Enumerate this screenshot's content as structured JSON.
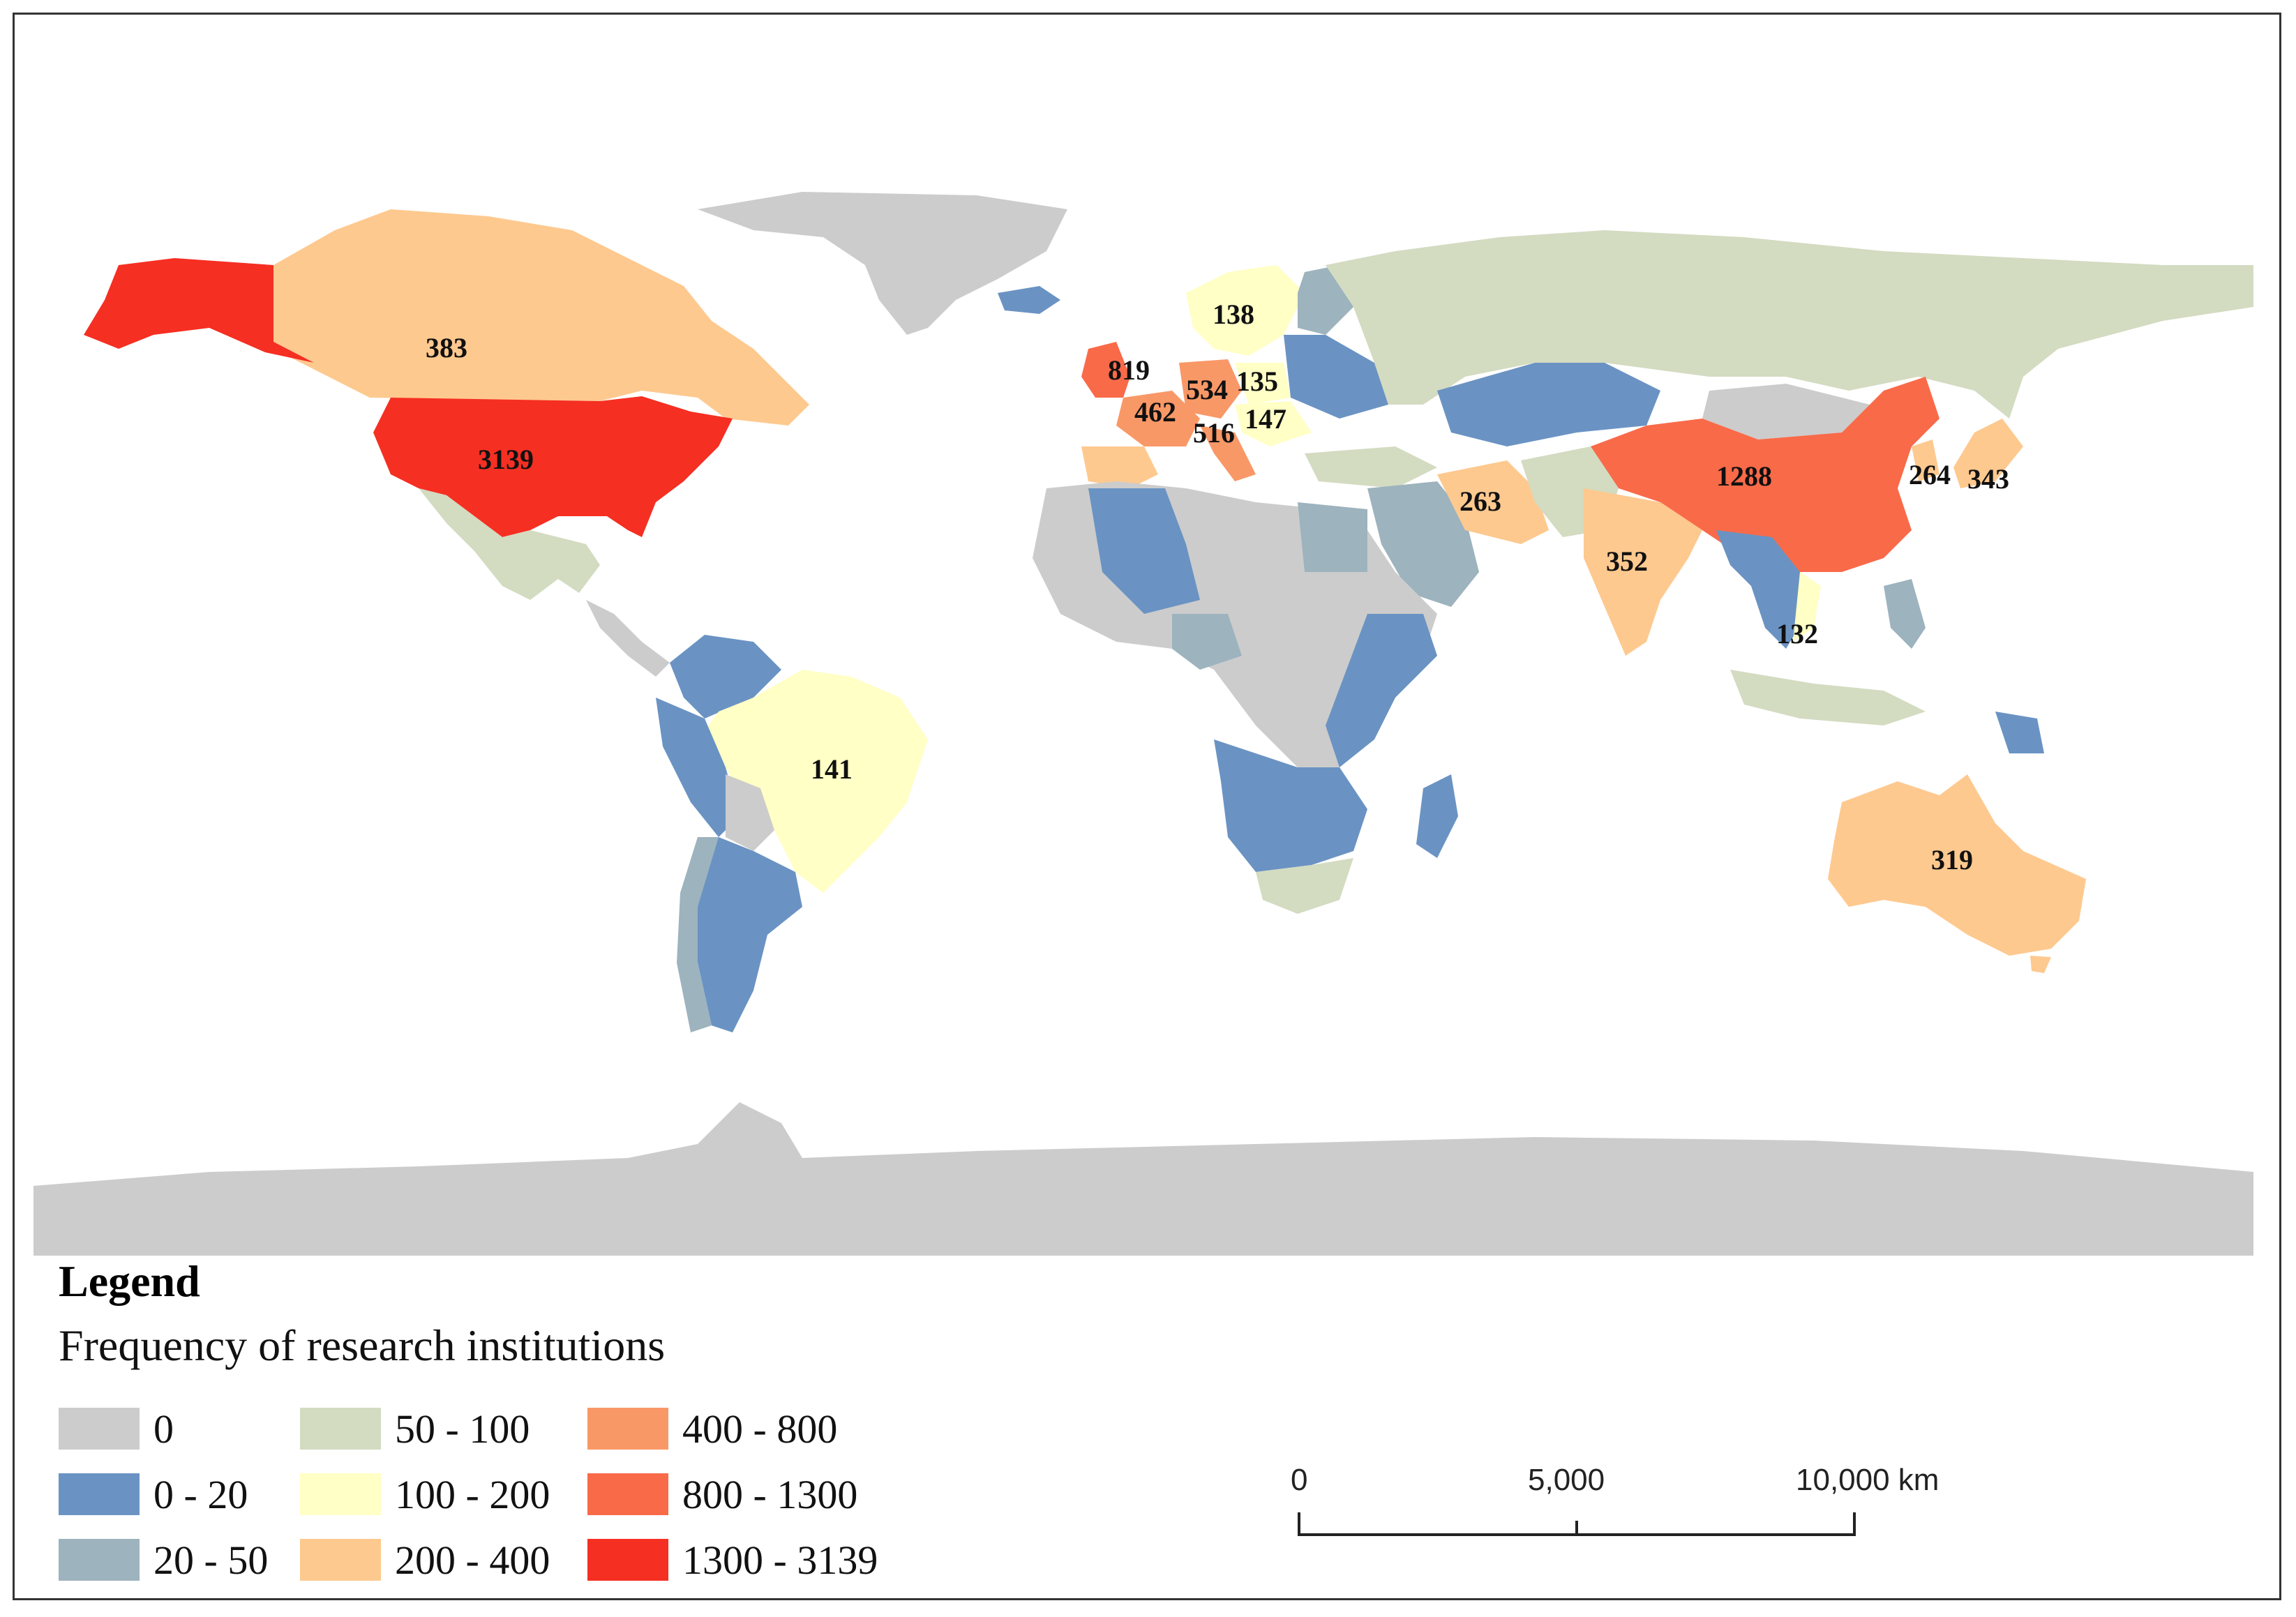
{
  "legend": {
    "title": "Legend",
    "subtitle": "Frequency of research institutions",
    "classes": [
      {
        "label": "0",
        "color": "#cccccc"
      },
      {
        "label": "0 - 20",
        "color": "#6a93c3"
      },
      {
        "label": "20 - 50",
        "color": "#9db3be"
      },
      {
        "label": "50 - 100",
        "color": "#d3dbc1"
      },
      {
        "label": "100 - 200",
        "color": "#ffffc6"
      },
      {
        "label": "200 - 400",
        "color": "#fec98f"
      },
      {
        "label": "400 - 800",
        "color": "#f99867"
      },
      {
        "label": "800 - 1300",
        "color": "#f96a49"
      },
      {
        "label": "1300 - 3139",
        "color": "#f52f22"
      }
    ]
  },
  "scale_bar": {
    "ticks": [
      "0",
      "5,000",
      "10,000 km"
    ]
  },
  "country_values": [
    {
      "value": "383",
      "class": 5
    },
    {
      "value": "3139",
      "class": 8
    },
    {
      "value": "141",
      "class": 4
    },
    {
      "value": "819",
      "class": 7
    },
    {
      "value": "138",
      "class": 4
    },
    {
      "value": "534",
      "class": 6
    },
    {
      "value": "135",
      "class": 4
    },
    {
      "value": "462",
      "class": 6
    },
    {
      "value": "147",
      "class": 4
    },
    {
      "value": "516",
      "class": 6
    },
    {
      "value": "263",
      "class": 5
    },
    {
      "value": "352",
      "class": 5
    },
    {
      "value": "1288",
      "class": 7
    },
    {
      "value": "264",
      "class": 5
    },
    {
      "value": "343",
      "class": 5
    },
    {
      "value": "132",
      "class": 4
    },
    {
      "value": "319",
      "class": 5
    }
  ]
}
